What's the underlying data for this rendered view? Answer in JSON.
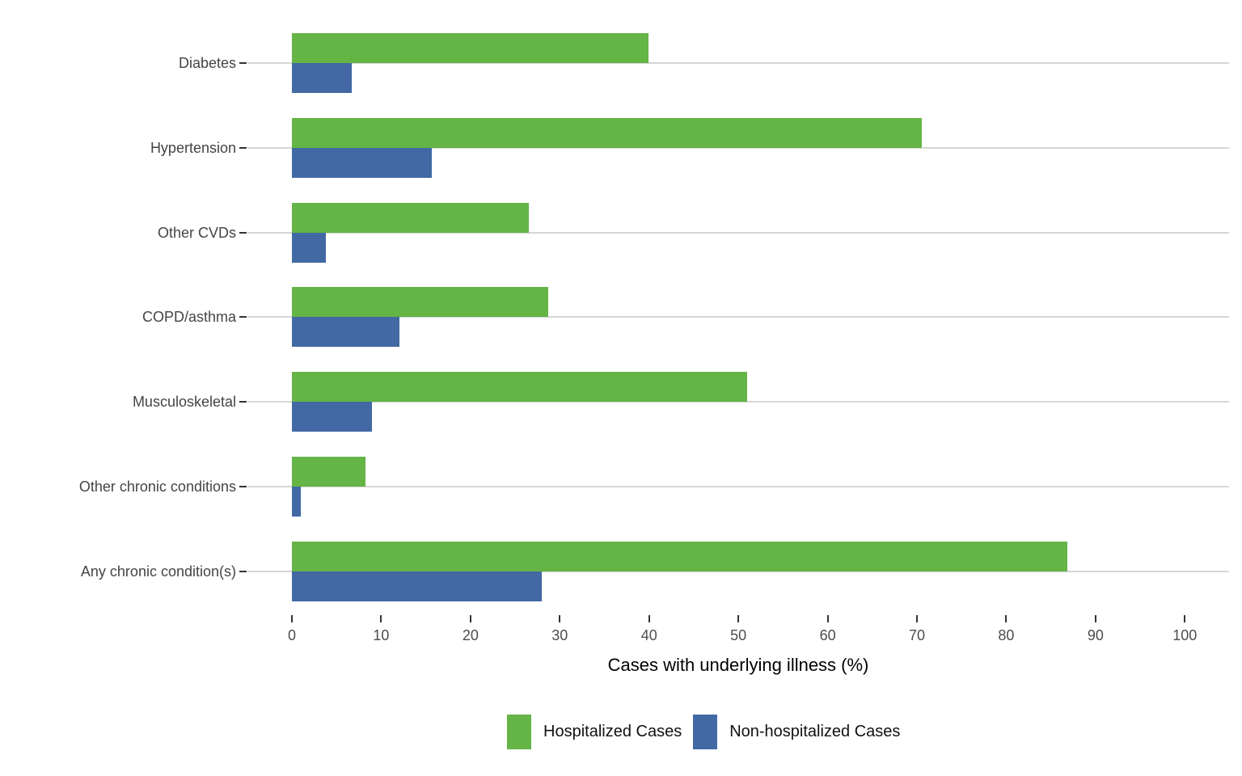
{
  "chart_data": {
    "type": "bar",
    "orientation": "horizontal-grouped",
    "title": "",
    "xlabel": "Cases with underlying illness (%)",
    "ylabel": "",
    "xlim": [
      0,
      100
    ],
    "xticks": [
      0,
      10,
      20,
      30,
      40,
      50,
      60,
      70,
      80,
      90,
      100
    ],
    "grid": "horizontal-category-lines-only",
    "legend_position": "bottom",
    "categories": [
      "Diabetes",
      "Hypertension",
      "Other CVDs",
      "COPD/asthma",
      "Musculoskeletal",
      "Other chronic conditions",
      "Any chronic condition(s)"
    ],
    "series": [
      {
        "name": "Hospitalized Cases",
        "color": "#64b446",
        "values": [
          39.9,
          70.5,
          26.5,
          28.7,
          51.0,
          8.2,
          86.8
        ]
      },
      {
        "name": "Non-hospitalized Cases",
        "color": "#4269a4",
        "values": [
          6.7,
          15.7,
          3.8,
          12.0,
          9.0,
          1.0,
          28.0
        ]
      }
    ],
    "colors": {
      "hospitalized": "#64b446",
      "non_hospitalized": "#4269a4",
      "gridline": "#d6d6d6",
      "tick": "#333333",
      "tick_label": "#4d4d4d",
      "category_label": "#444444",
      "axis_title": "#000000",
      "background": "#ffffff"
    }
  }
}
